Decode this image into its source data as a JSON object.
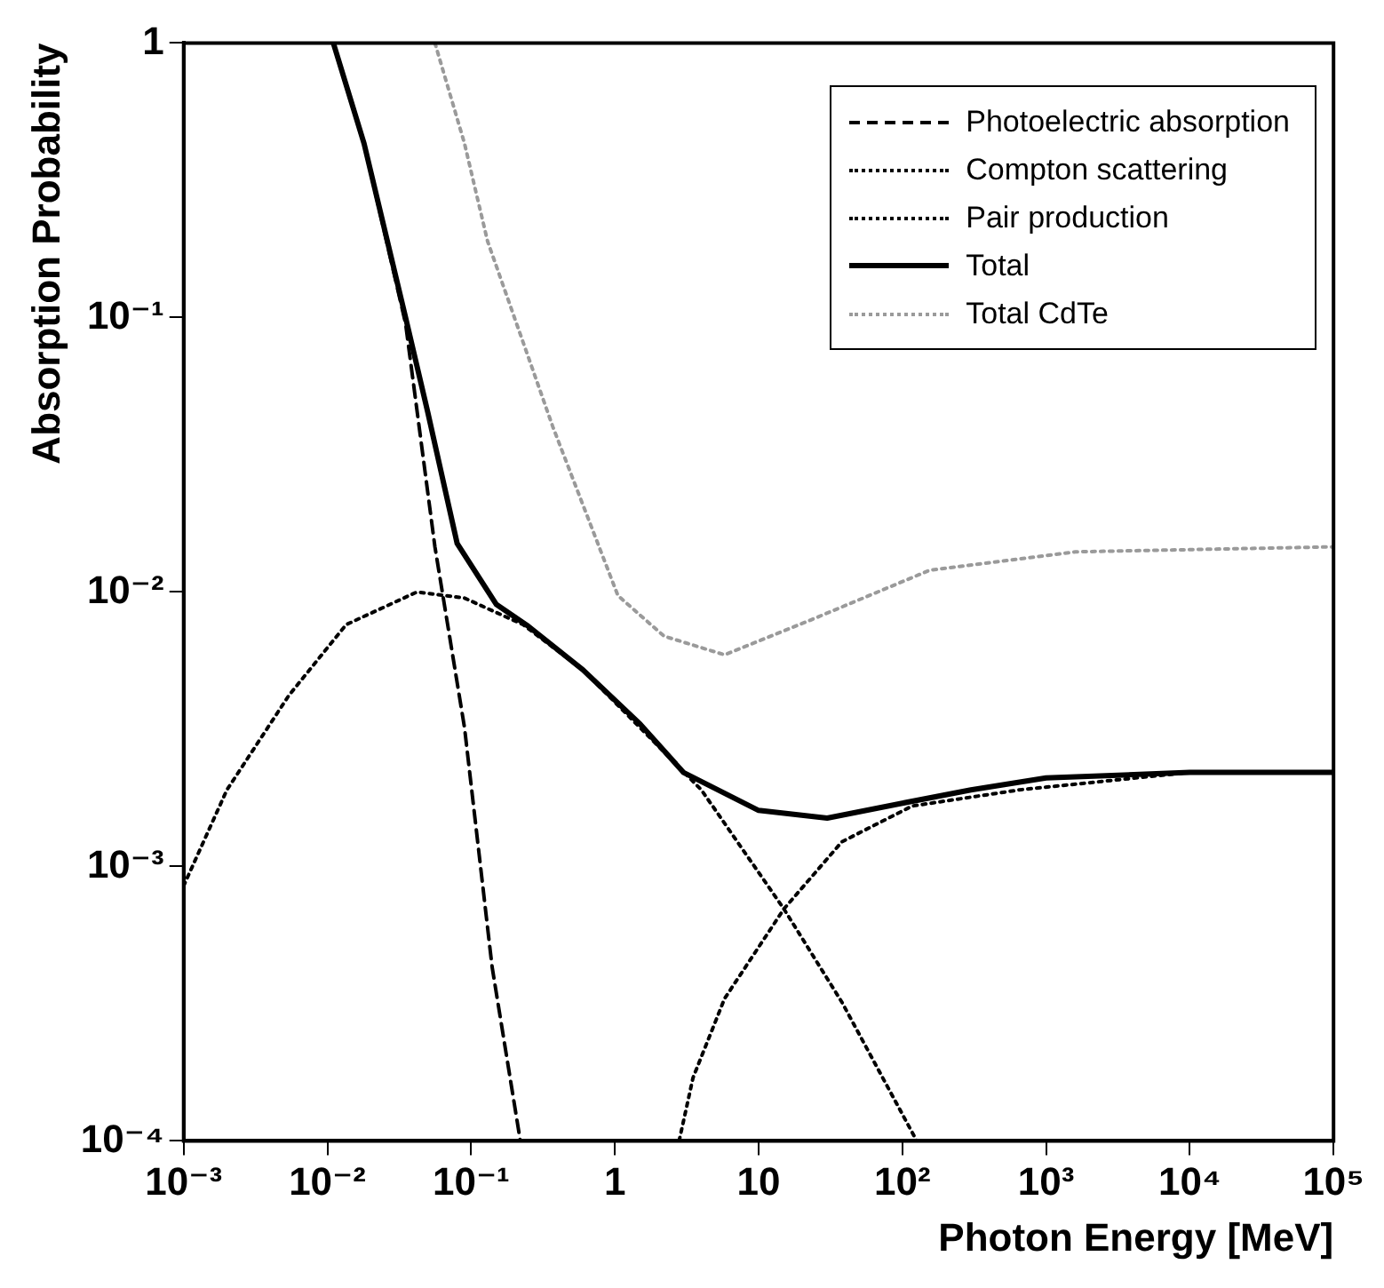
{
  "chart_data": {
    "type": "line",
    "xlabel": "Photon Energy [MeV]",
    "ylabel": "Absorption Probability",
    "log": "xy",
    "grid": false,
    "legend": "top right",
    "marker": "none",
    "xlim": [
      0.001,
      100000
    ],
    "ylim": [
      0.0001,
      1
    ],
    "xticks": [
      {
        "value": 0.001,
        "label": "10⁻³"
      },
      {
        "value": 0.01,
        "label": "10⁻²"
      },
      {
        "value": 0.1,
        "label": "10⁻¹"
      },
      1,
      10,
      {
        "value": 100,
        "label": "10²"
      },
      {
        "value": 1000,
        "label": "10³"
      },
      {
        "value": 10000,
        "label": "10⁴"
      },
      {
        "value": 100000,
        "label": "10⁵"
      }
    ],
    "yticks": [
      {
        "value": 0.0001,
        "label": "10⁻⁴"
      },
      {
        "value": 0.001,
        "label": "10⁻³"
      },
      {
        "value": 0.01,
        "label": "10⁻²"
      },
      {
        "value": 0.1,
        "label": "10⁻¹"
      },
      1
    ],
    "series": [
      {
        "name": "Photoelectric absorption",
        "color": "#000000",
        "line_style": "dashed",
        "x": [
          0.011,
          0.018,
          0.035,
          0.056,
          0.09,
          0.14,
          0.22
        ],
        "values": [
          1,
          0.43,
          0.095,
          0.0146,
          0.0032,
          0.00043,
          0.0001
        ]
      },
      {
        "name": "Compton scattering",
        "color": "#000000",
        "line_style": "dotted",
        "x": [
          0.001,
          0.002,
          0.0054,
          0.0135,
          0.042,
          0.09,
          0.23,
          0.6,
          1.5,
          4,
          15,
          38,
          126
        ],
        "values": [
          0.00085,
          0.0019,
          0.0042,
          0.0076,
          0.01,
          0.0095,
          0.0076,
          0.0052,
          0.0032,
          0.0019,
          0.0007,
          0.00032,
          0.0001
        ]
      },
      {
        "name": "Pair production",
        "color": "#000000",
        "line_style": "dotted",
        "x": [
          2.8,
          3.5,
          5.8,
          15,
          38,
          117,
          650,
          10000,
          100000
        ],
        "values": [
          0.0001,
          0.00017,
          0.00033,
          0.0007,
          0.00123,
          0.00166,
          0.0019,
          0.0022,
          0.0022
        ]
      },
      {
        "name": "Total",
        "color": "#000000",
        "line_style": "solid",
        "x": [
          0.011,
          0.018,
          0.035,
          0.05,
          0.08,
          0.15,
          0.25,
          0.6,
          1.5,
          3,
          10,
          30,
          100,
          300,
          1000,
          10000,
          100000
        ],
        "values": [
          1,
          0.43,
          0.1,
          0.045,
          0.015,
          0.009,
          0.0075,
          0.0052,
          0.0033,
          0.0022,
          0.0016,
          0.0015,
          0.0017,
          0.0019,
          0.0021,
          0.0022,
          0.0022
        ]
      },
      {
        "name": "Total CdTe",
        "color": "#9a9a9a",
        "line_style": "dotted",
        "x": [
          0.056,
          0.09,
          0.13,
          0.37,
          1.05,
          2.2,
          5.8,
          23,
          155,
          1600,
          100000
        ],
        "values": [
          1,
          0.43,
          0.19,
          0.04,
          0.0097,
          0.0069,
          0.0059,
          0.0079,
          0.012,
          0.014,
          0.0146
        ]
      }
    ]
  }
}
